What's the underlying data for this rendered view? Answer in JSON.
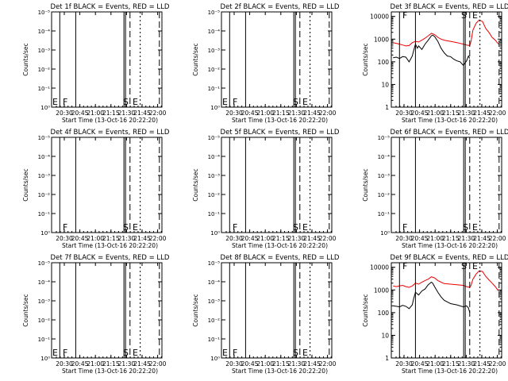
{
  "chart_data": [
    {
      "type": "line",
      "title": "Det 1f BLACK = Events, RED = LLD",
      "xlabel": "Start Time (13-Oct-16 20:22:20)",
      "ylabel": "Counts/sec",
      "xticks": [
        "20:30",
        "20:45",
        "21:00",
        "21:15",
        "21:30",
        "21:45",
        "22:00"
      ],
      "yticks": [
        "10⁰",
        "10⁻¹",
        "10⁻²",
        "10⁻³",
        "10⁻⁴",
        "10⁻⁵"
      ],
      "log": false,
      "markers": [
        "E",
        "F",
        "S",
        "E"
      ],
      "series": []
    },
    {
      "type": "line",
      "title": "Det 2f BLACK = Events, RED = LLD",
      "xlabel": "Start Time (13-Oct-16 20:22:20)",
      "ylabel": "Counts/sec",
      "xticks": [
        "20:30",
        "20:45",
        "21:00",
        "21:15",
        "21:30",
        "21:45",
        "22:00"
      ],
      "yticks": [
        "10⁰",
        "10⁻¹",
        "10⁻²",
        "10⁻³",
        "10⁻⁴",
        "10⁻⁵"
      ],
      "log": false,
      "markers": [
        "E",
        "F",
        "S",
        "E"
      ],
      "series": []
    },
    {
      "type": "line",
      "title": "Det 3f BLACK = Events, RED = LLD",
      "xlabel": "Start Time (13-Oct-16 20:22:20)",
      "ylabel": "Counts/sec",
      "xticks": [
        "20:30",
        "20:45",
        "21:00",
        "21:15",
        "21:30",
        "21:45",
        "22:00"
      ],
      "yticks": [
        "1",
        "10",
        "100",
        "1000",
        "10000"
      ],
      "log": true,
      "markers": [
        "F",
        "S",
        "E"
      ],
      "series": [
        {
          "color": "#000000",
          "x": [
            20.4,
            20.45,
            20.5,
            20.55,
            20.6,
            20.65,
            20.7,
            20.72,
            20.75,
            20.78,
            20.8,
            20.85,
            20.9,
            20.95,
            21.0,
            21.02,
            21.05,
            21.1,
            21.15,
            21.2,
            21.25,
            21.3,
            21.35,
            21.4,
            21.45,
            21.5,
            21.55,
            21.58,
            21.6
          ],
          "y": [
            150,
            160,
            140,
            170,
            160,
            100,
            180,
            300,
            600,
            400,
            500,
            350,
            600,
            900,
            1400,
            1500,
            1300,
            800,
            400,
            250,
            180,
            170,
            130,
            110,
            100,
            70,
            110,
            180,
            140
          ]
        },
        {
          "color": "#ee0000",
          "x": [
            20.4,
            20.45,
            20.5,
            20.55,
            20.6,
            20.65,
            20.7,
            20.75,
            20.8,
            20.85,
            20.9,
            20.95,
            21.0,
            21.05,
            21.1,
            21.15,
            21.2,
            21.3,
            21.4,
            21.5,
            21.55,
            21.6,
            21.62,
            21.65,
            21.7,
            21.75,
            21.8,
            21.85,
            21.9,
            21.95,
            22.0,
            22.05
          ],
          "y": [
            700,
            650,
            600,
            550,
            500,
            520,
            700,
            800,
            750,
            900,
            1100,
            1400,
            1800,
            1600,
            1200,
            1000,
            900,
            800,
            700,
            600,
            550,
            520,
            800,
            2500,
            5000,
            7000,
            6000,
            3000,
            2000,
            1200,
            900,
            600
          ]
        }
      ]
    },
    {
      "type": "line",
      "title": "Det 4f BLACK = Events, RED = LLD",
      "xlabel": "Start Time (13-Oct-16 20:22:20)",
      "ylabel": "Counts/sec",
      "xticks": [
        "20:30",
        "20:45",
        "21:00",
        "21:15",
        "21:30",
        "21:45",
        "22:00"
      ],
      "yticks": [
        "10⁰",
        "10⁻¹",
        "10⁻²",
        "10⁻³",
        "10⁻⁴",
        "10⁻⁵"
      ],
      "log": false,
      "markers": [
        "F",
        "S",
        "E"
      ],
      "series": []
    },
    {
      "type": "line",
      "title": "Det 5f BLACK = Events, RED = LLD",
      "xlabel": "Start Time (13-Oct-16 20:22:20)",
      "ylabel": "Counts/sec",
      "xticks": [
        "20:30",
        "20:45",
        "21:00",
        "21:15",
        "21:30",
        "21:45",
        "22:00"
      ],
      "yticks": [
        "10⁰",
        "10⁻¹",
        "10⁻²",
        "10⁻³",
        "10⁻⁴",
        "10⁻⁵"
      ],
      "log": false,
      "markers": [
        "F",
        "S",
        "E"
      ],
      "series": []
    },
    {
      "type": "line",
      "title": "Det 6f BLACK = Events, RED = LLD",
      "xlabel": "Start Time (13-Oct-16 20:22:20)",
      "ylabel": "Counts/sec",
      "xticks": [
        "20:30",
        "20:45",
        "21:00",
        "21:15",
        "21:30",
        "21:45",
        "22:00"
      ],
      "yticks": [
        "10⁰",
        "10⁻¹",
        "10⁻²",
        "10⁻³",
        "10⁻⁴",
        "10⁻⁵"
      ],
      "log": false,
      "markers": [
        "F",
        "S",
        "E"
      ],
      "series": []
    },
    {
      "type": "line",
      "title": "Det 7f BLACK = Events, RED = LLD",
      "xlabel": "Start Time (13-Oct-16 20:22:20)",
      "ylabel": "Counts/sec",
      "xticks": [
        "20:30",
        "20:45",
        "21:00",
        "21:15",
        "21:30",
        "21:45",
        "22:00"
      ],
      "yticks": [
        "10⁰",
        "10⁻¹",
        "10⁻²",
        "10⁻³",
        "10⁻⁴",
        "10⁻⁵"
      ],
      "log": false,
      "markers": [
        "E",
        "F",
        "S",
        "E"
      ],
      "series": []
    },
    {
      "type": "line",
      "title": "Det 8f BLACK = Events, RED = LLD",
      "xlabel": "Start Time (13-Oct-16 20:22:20)",
      "ylabel": "Counts/sec",
      "xticks": [
        "20:30",
        "20:45",
        "21:00",
        "21:15",
        "21:30",
        "21:45",
        "22:00"
      ],
      "yticks": [
        "10⁰",
        "10⁻¹",
        "10⁻²",
        "10⁻³",
        "10⁻⁴",
        "10⁻⁵"
      ],
      "log": false,
      "markers": [
        "E",
        "F",
        "S",
        "E"
      ],
      "series": []
    },
    {
      "type": "line",
      "title": "Det 9f BLACK = Events, RED = LLD",
      "xlabel": "Start Time (13-Oct-16 20:22:20)",
      "ylabel": "Counts/sec",
      "xticks": [
        "20:30",
        "20:45",
        "21:00",
        "21:15",
        "21:30",
        "21:45",
        "22:00"
      ],
      "yticks": [
        "1",
        "10",
        "100",
        "1000",
        "10000"
      ],
      "log": true,
      "markers": [
        "F",
        "S",
        "E"
      ],
      "series": [
        {
          "color": "#000000",
          "x": [
            20.4,
            20.45,
            20.5,
            20.55,
            20.6,
            20.65,
            20.7,
            20.72,
            20.75,
            20.8,
            20.85,
            20.9,
            20.95,
            21.0,
            21.02,
            21.05,
            21.1,
            21.15,
            21.2,
            21.3,
            21.4,
            21.5,
            21.55,
            21.58,
            21.6
          ],
          "y": [
            200,
            190,
            180,
            210,
            190,
            150,
            220,
            400,
            800,
            600,
            900,
            1100,
            1700,
            2200,
            2000,
            1400,
            800,
            500,
            350,
            250,
            220,
            180,
            200,
            160,
            100
          ]
        },
        {
          "color": "#ee0000",
          "x": [
            20.4,
            20.45,
            20.5,
            20.55,
            20.6,
            20.65,
            20.7,
            20.75,
            20.8,
            20.85,
            20.9,
            20.95,
            21.0,
            21.05,
            21.1,
            21.15,
            21.2,
            21.3,
            21.4,
            21.5,
            21.55,
            21.6,
            21.62,
            21.65,
            21.7,
            21.75,
            21.8,
            21.85,
            21.9,
            21.95,
            22.0,
            22.05
          ],
          "y": [
            1500,
            1400,
            1500,
            1600,
            1400,
            1300,
            1500,
            2000,
            1800,
            2200,
            2600,
            3000,
            3800,
            3400,
            2600,
            2200,
            1900,
            1800,
            1700,
            1600,
            1400,
            1300,
            1600,
            3000,
            5000,
            7000,
            6500,
            4000,
            2800,
            2000,
            1400,
            900
          ]
        }
      ]
    }
  ]
}
